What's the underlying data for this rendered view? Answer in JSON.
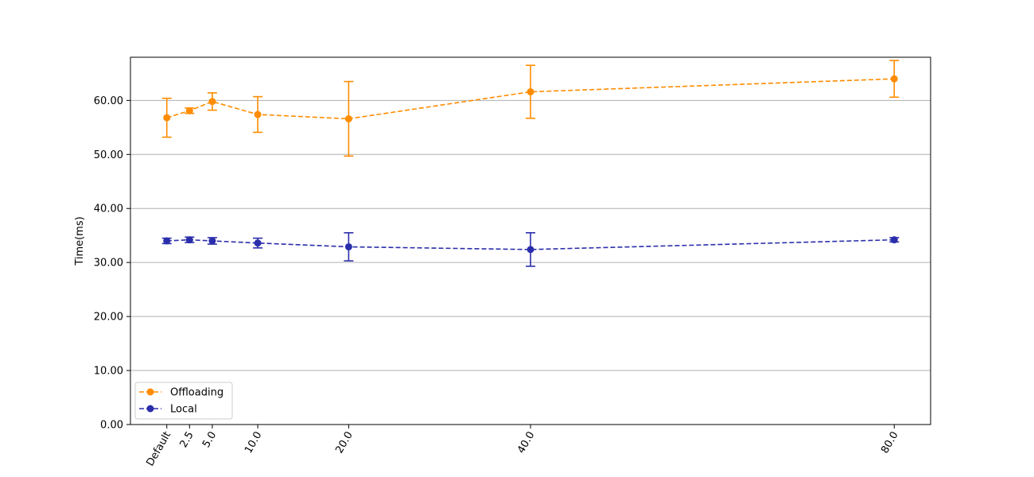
{
  "chart_data": {
    "type": "line",
    "title": "",
    "xlabel": "",
    "ylabel": "Time(ms)",
    "x_tick_labels": [
      "Default",
      "2.5",
      "5.0",
      "10.0",
      "20.0",
      "40.0",
      "80.0"
    ],
    "x": [
      0,
      2.5,
      5.0,
      10.0,
      20.0,
      40.0,
      80.0
    ],
    "ylim": [
      0,
      68
    ],
    "y_ticks": [
      0,
      10,
      20,
      30,
      40,
      50,
      60
    ],
    "y_tick_labels": [
      "0.00",
      "10.00",
      "20.00",
      "30.00",
      "40.00",
      "50.00",
      "60.00"
    ],
    "grid": "horizontal",
    "legend_position": "lower-left",
    "series": [
      {
        "name": "Offloading",
        "color": "#ff8c00",
        "linestyle": "dashed",
        "marker": "circle",
        "values": [
          56.8,
          58.1,
          59.8,
          57.4,
          56.6,
          61.6,
          64.0
        ],
        "err": [
          3.6,
          0.5,
          1.6,
          3.3,
          6.9,
          4.9,
          3.4
        ]
      },
      {
        "name": "Local",
        "color": "#2b2eab",
        "linestyle": "dashed",
        "marker": "circle",
        "values": [
          34.0,
          34.2,
          34.0,
          33.6,
          32.9,
          32.4,
          34.2
        ],
        "err": [
          0.5,
          0.5,
          0.6,
          0.9,
          2.6,
          3.1,
          0.4
        ]
      }
    ]
  }
}
